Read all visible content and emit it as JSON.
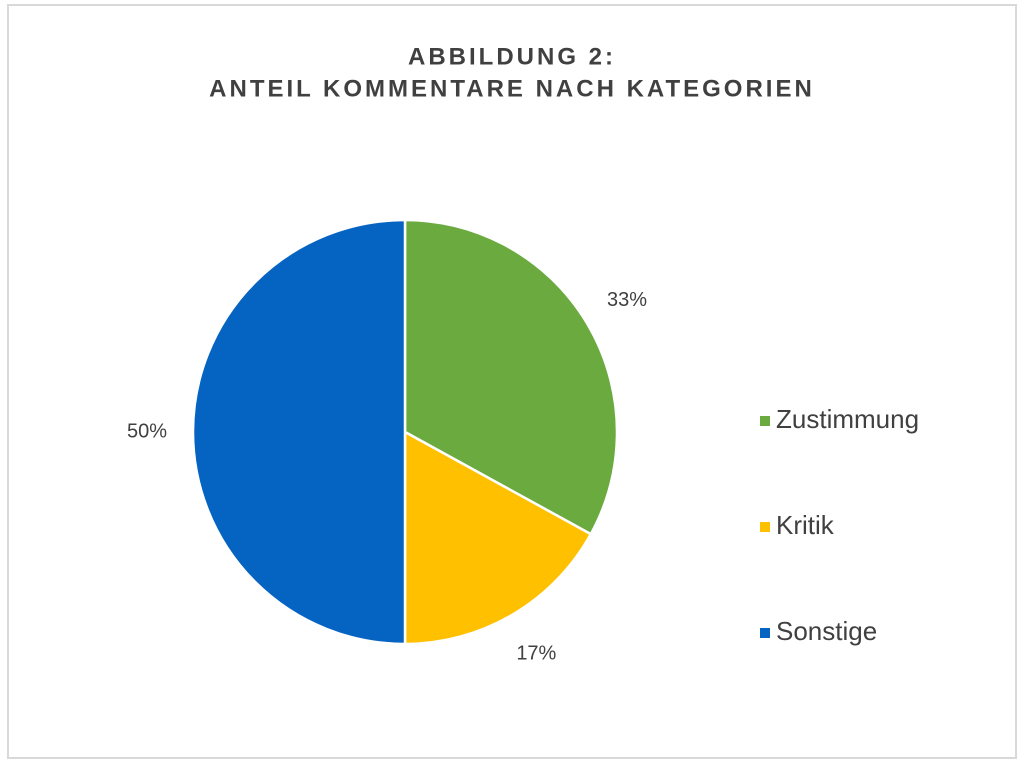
{
  "chart_data": {
    "type": "pie",
    "title": [
      "ABBILDUNG 2:",
      "ANTEIL KOMMENTARE NACH KATEGORIEN"
    ],
    "categories": [
      "Zustimmung",
      "Kritik",
      "Sonstige"
    ],
    "values": [
      33,
      17,
      50
    ],
    "value_labels": [
      "33%",
      "17%",
      "50%"
    ],
    "colors": [
      "#6aaa3f",
      "#ffc000",
      "#0563c1"
    ],
    "legend": "right"
  }
}
